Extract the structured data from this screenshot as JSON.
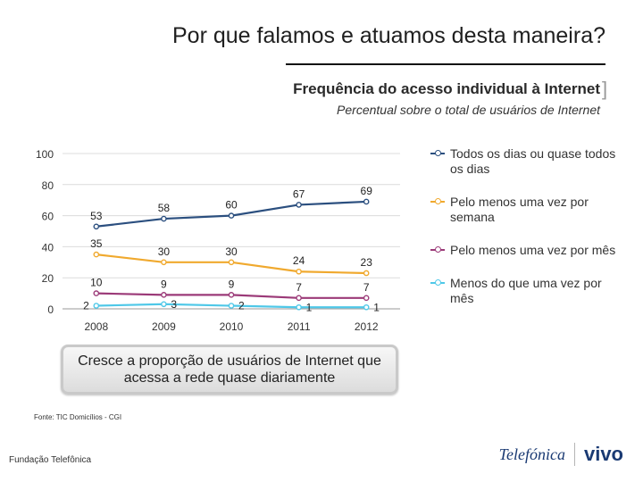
{
  "slide": {
    "title": "Por que falamos e atuamos desta maneira?"
  },
  "chart_data": {
    "type": "line",
    "title": "Frequência do acesso individual à Internet",
    "subtitle": "Percentual sobre o total de usuários de Internet",
    "categories": [
      "2008",
      "2009",
      "2010",
      "2011",
      "2012"
    ],
    "y_ticks": [
      "0",
      "20",
      "40",
      "60",
      "80",
      "100"
    ],
    "ylim": [
      0,
      100
    ],
    "grid": true,
    "legend_position": "right",
    "series": [
      {
        "name": "Todos os dias ou quase todos os dias",
        "values": [
          53,
          58,
          60,
          67,
          69
        ],
        "labels": [
          "53",
          "58",
          "60",
          "67",
          "69"
        ],
        "color": "#2b4f7f"
      },
      {
        "name": "Pelo menos uma vez por semana",
        "values": [
          35,
          30,
          30,
          24,
          23
        ],
        "labels": [
          "35",
          "30",
          "30",
          "24",
          "23"
        ],
        "color": "#f0a92e"
      },
      {
        "name": "Pelo menos uma vez por mês",
        "values": [
          10,
          9,
          9,
          7,
          7
        ],
        "labels": [
          "10",
          "9",
          "9",
          "7",
          "7"
        ],
        "color": "#9b3a78"
      },
      {
        "name": "Menos do que uma vez por mês",
        "values": [
          2,
          3,
          2,
          1,
          1
        ],
        "labels": [
          "2",
          "3",
          "2",
          "1",
          "1"
        ],
        "color": "#4fc8e8"
      }
    ]
  },
  "callout": {
    "text": "Cresce a proporção de usuários de Internet que acessa a rede quase diariamente"
  },
  "source": "Fonte: TIC Domicílios - CGI",
  "footer": {
    "left": "Fundação Telefônica",
    "logo_telefonica": "Telefónica",
    "logo_vivo": "vivo"
  }
}
